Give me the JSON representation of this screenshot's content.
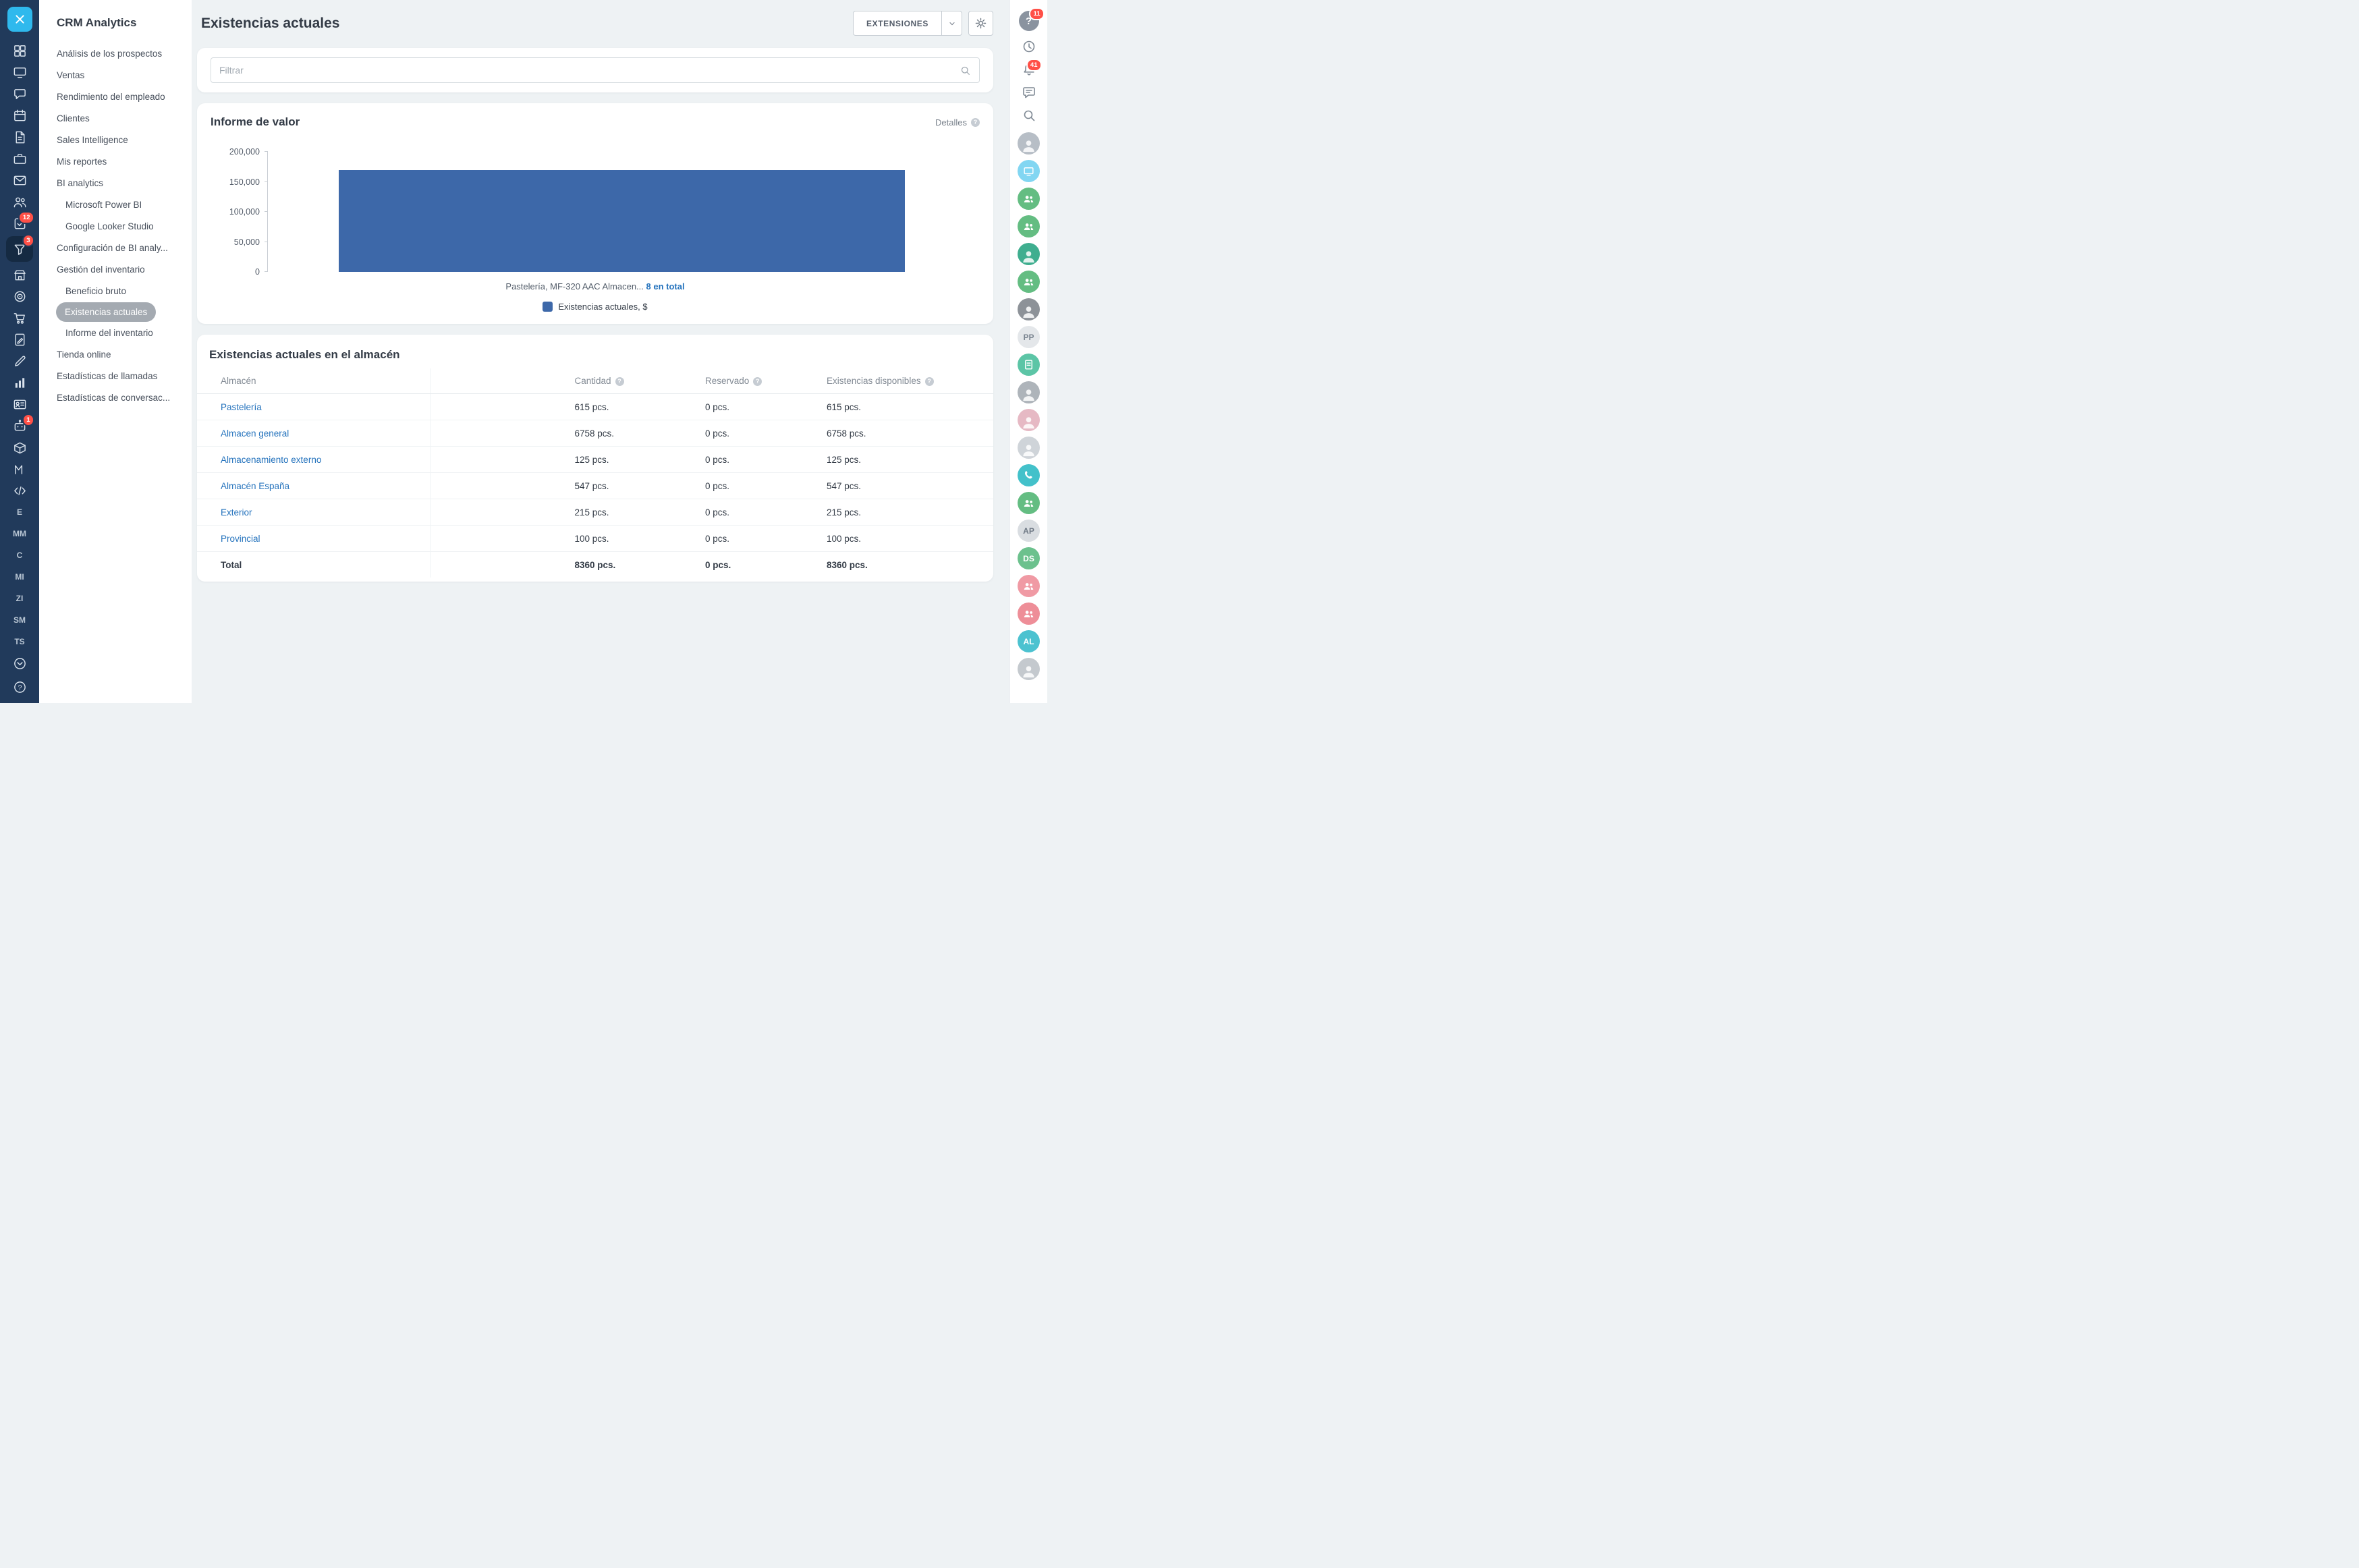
{
  "sidebar": {
    "title": "CRM Analytics",
    "items": [
      {
        "label": "Análisis de los prospectos",
        "level": 0
      },
      {
        "label": "Ventas",
        "level": 0
      },
      {
        "label": "Rendimiento del empleado",
        "level": 0
      },
      {
        "label": "Clientes",
        "level": 0
      },
      {
        "label": "Sales Intelligence",
        "level": 0
      },
      {
        "label": "Mis reportes",
        "level": 0
      },
      {
        "label": "BI analytics",
        "level": 0
      },
      {
        "label": "Microsoft Power BI",
        "level": 1
      },
      {
        "label": "Google Looker Studio",
        "level": 1
      },
      {
        "label": "Configuración de BI analy...",
        "level": 0
      },
      {
        "label": "Gestión del inventario",
        "level": 0
      },
      {
        "label": "Beneficio bruto",
        "level": 1
      },
      {
        "label": "Existencias actuales",
        "level": 1,
        "selected": true
      },
      {
        "label": "Informe del inventario",
        "level": 1
      },
      {
        "label": "Tienda online",
        "level": 0
      },
      {
        "label": "Estadísticas de llamadas",
        "level": 0
      },
      {
        "label": "Estadísticas de conversac...",
        "level": 0
      }
    ]
  },
  "header": {
    "title": "Existencias actuales",
    "extensions_label": "EXTENSIONES"
  },
  "filter": {
    "placeholder": "Filtrar"
  },
  "value_report": {
    "title": "Informe de valor",
    "details_label": "Detalles",
    "caption_prefix": "Pastelería, MF-320 AAC Almacen...",
    "caption_link": "8 en total",
    "legend_label": "Existencias actuales, $"
  },
  "chart_data": {
    "type": "bar",
    "title": "Informe de valor",
    "categories": [
      "Pastelería, MF-320 AAC Almacen... 8 en total"
    ],
    "values": [
      170000
    ],
    "series_label": "Existencias actuales, $",
    "ylim": [
      0,
      200000
    ],
    "yticks": [
      0,
      50000,
      100000,
      150000,
      200000
    ],
    "ytick_labels": [
      "0",
      "50,000",
      "100,000",
      "150,000",
      "200,000"
    ],
    "bar_color": "#3d68a9",
    "grid": false,
    "legend_position": "bottom"
  },
  "warehouse": {
    "title": "Existencias actuales en el almacén",
    "columns": [
      "Almacén",
      "Cantidad",
      "Reservado",
      "Existencias disponibles"
    ],
    "rows": [
      {
        "name": "Pastelería",
        "cantidad": "615 pcs.",
        "reservado": "0 pcs.",
        "disponibles": "615 pcs."
      },
      {
        "name": "Almacen general",
        "cantidad": "6758 pcs.",
        "reservado": "0 pcs.",
        "disponibles": "6758 pcs."
      },
      {
        "name": "Almacenamiento externo",
        "cantidad": "125 pcs.",
        "reservado": "0 pcs.",
        "disponibles": "125 pcs."
      },
      {
        "name": "Almacén España",
        "cantidad": "547 pcs.",
        "reservado": "0 pcs.",
        "disponibles": "547 pcs."
      },
      {
        "name": "Exterior",
        "cantidad": "215 pcs.",
        "reservado": "0 pcs.",
        "disponibles": "215 pcs."
      },
      {
        "name": "Provincial",
        "cantidad": "100 pcs.",
        "reservado": "0 pcs.",
        "disponibles": "100 pcs."
      }
    ],
    "total": {
      "name": "Total",
      "cantidad": "8360 pcs.",
      "reservado": "0 pcs.",
      "disponibles": "8360 pcs."
    }
  },
  "left_rail": {
    "badges": {
      "tasks": "12",
      "crm": "3",
      "automation": "1"
    },
    "letters": [
      "E",
      "MM",
      "C",
      "MI",
      "ZI",
      "SM",
      "TS"
    ]
  },
  "right_rail": {
    "help_badge": "11",
    "notifications_badge": "41",
    "avatars": [
      {
        "type": "photo",
        "bg": "#b7bec6"
      },
      {
        "type": "icon",
        "icon": "screen",
        "bg": "#82d6f2"
      },
      {
        "type": "icon",
        "icon": "users",
        "bg": "#64bd82"
      },
      {
        "type": "icon",
        "icon": "users",
        "bg": "#64bd82"
      },
      {
        "type": "photo",
        "bg": "#3fae8f"
      },
      {
        "type": "icon",
        "icon": "users",
        "bg": "#64bd82"
      },
      {
        "type": "photo",
        "bg": "#8d9298"
      },
      {
        "type": "initials",
        "label": "PP",
        "bg": "#e4e7ea",
        "fg": "#7b8591"
      },
      {
        "type": "icon",
        "icon": "doc",
        "bg": "#5cc5a6"
      },
      {
        "type": "photo",
        "bg": "#aeb4ba"
      },
      {
        "type": "photo",
        "bg": "#e6b9c4"
      },
      {
        "type": "photo",
        "bg": "#cfd4d9"
      },
      {
        "type": "icon",
        "icon": "phone",
        "bg": "#43c1ca"
      },
      {
        "type": "icon",
        "icon": "users",
        "bg": "#64bd82"
      },
      {
        "type": "initials",
        "label": "AP",
        "bg": "#d9dde1",
        "fg": "#6f7985"
      },
      {
        "type": "initials",
        "label": "DS",
        "bg": "#6cc18d",
        "fg": "#ffffff"
      },
      {
        "type": "icon",
        "icon": "users",
        "bg": "#f09aa4"
      },
      {
        "type": "icon",
        "icon": "users",
        "bg": "#ee8e98"
      },
      {
        "type": "initials",
        "label": "AL",
        "bg": "#4cc2d0",
        "fg": "#ffffff"
      },
      {
        "type": "photo",
        "bg": "#c4c9ce"
      }
    ]
  }
}
